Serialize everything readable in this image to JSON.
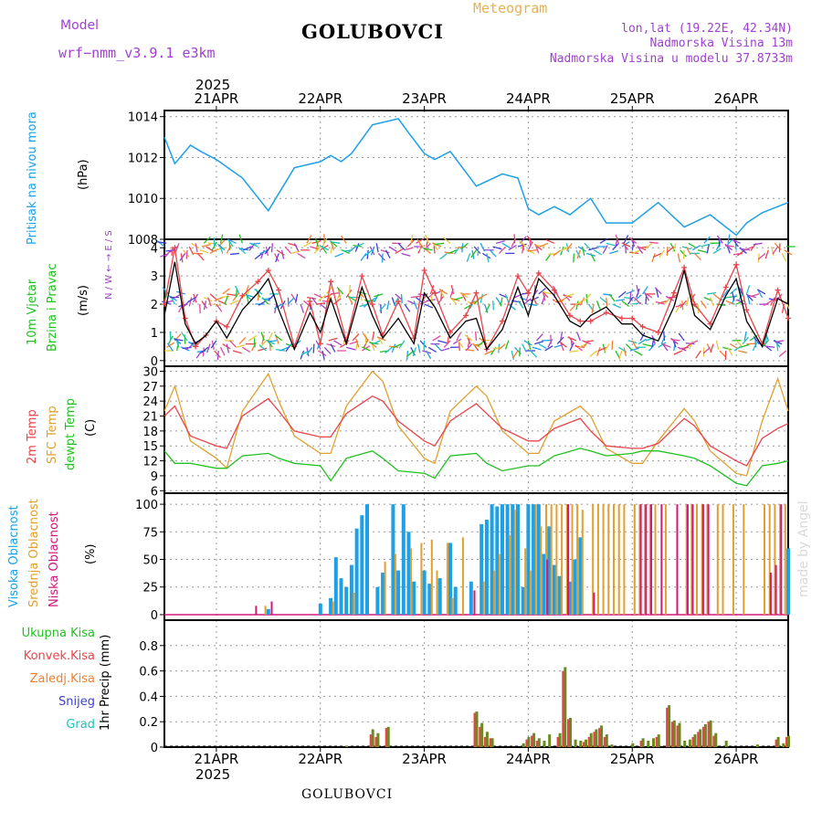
{
  "header": {
    "title": "GOLUBOVCI",
    "meteogram": "Meteogram",
    "model_label": "Model",
    "model_name": "wrf−nmm_v3.9.1  e3km",
    "lonlat": "lon,lat (19.22E, 42.34N)",
    "elevation": "Nadmorska Visina 13m",
    "model_elevation": "Nadmorska Visina u modelu 37.8733m",
    "footer_title": "GOLUBOVCI",
    "watermark": "made by Angel"
  },
  "colors": {
    "pressure": "#1ea0e6",
    "wind_speed": "#000000",
    "gust": "#e8454b",
    "t2m": "#e8454b",
    "sfc": "#e0a030",
    "dewpt": "#22c022",
    "high_cloud": "#1ea0e6",
    "mid_cloud": "#e0a030",
    "low_cloud": "#d0187a",
    "total_precip": "#22c022",
    "convective": "#e8454b",
    "frozen": "#f08030",
    "snow": "#4040d0",
    "graupel": "#20c0c0"
  },
  "chart_data": [
    {
      "id": "time_axis",
      "type": "line",
      "year": "2025",
      "date_labels": [
        "21APR",
        "22APR",
        "23APR",
        "24APR",
        "25APR",
        "26APR"
      ]
    },
    {
      "id": "pressure",
      "type": "line",
      "ylabel_1": "Pritisak na nivou mora",
      "ylabel_2": "(hPa)",
      "ylim": [
        1008,
        1014.3
      ],
      "yticks": [
        1008,
        1010,
        1012,
        1014
      ],
      "x": [
        0.5,
        0.6,
        0.75,
        0.85,
        1.0,
        1.25,
        1.5,
        1.75,
        2.0,
        2.1,
        2.2,
        2.3,
        2.5,
        2.75,
        2.85,
        3.0,
        3.1,
        3.25,
        3.5,
        3.75,
        3.9,
        4.0,
        4.1,
        4.25,
        4.4,
        4.6,
        4.75,
        5.0,
        5.25,
        5.5,
        5.75,
        6.0,
        6.1,
        6.25,
        6.5
      ],
      "values": [
        1013,
        1011.7,
        1012.6,
        1012.3,
        1011.9,
        1011,
        1009.4,
        1011.5,
        1011.8,
        1012.1,
        1011.8,
        1012.2,
        1013.6,
        1013.9,
        1013.2,
        1012.2,
        1011.9,
        1012.3,
        1010.6,
        1011.2,
        1011,
        1009.5,
        1009.2,
        1009.6,
        1009.2,
        1010,
        1008.8,
        1008.8,
        1009.8,
        1008.6,
        1009.2,
        1008.2,
        1008.8,
        1009.3,
        1009.8
      ]
    },
    {
      "id": "wind",
      "type": "line",
      "ylabel_1": "10m Vjetar",
      "ylabel_2": "Brzina i Pravac",
      "ylabel_3": "(m/s)",
      "compass": "N / W ← → E / S",
      "ylim": [
        -0.2,
        4.3
      ],
      "yticks": [
        0,
        1,
        2,
        3,
        4
      ],
      "x": [
        0.5,
        0.6,
        0.7,
        0.8,
        0.9,
        1.0,
        1.1,
        1.25,
        1.4,
        1.5,
        1.6,
        1.75,
        1.9,
        2.0,
        2.1,
        2.25,
        2.4,
        2.5,
        2.6,
        2.75,
        2.9,
        3.0,
        3.1,
        3.25,
        3.4,
        3.5,
        3.6,
        3.75,
        3.9,
        4.0,
        4.1,
        4.25,
        4.4,
        4.5,
        4.6,
        4.75,
        4.9,
        5.0,
        5.1,
        5.25,
        5.4,
        5.5,
        5.6,
        5.75,
        5.9,
        6.0,
        6.1,
        6.25,
        6.4,
        6.5
      ],
      "speed": [
        1.6,
        3.5,
        1.3,
        0.6,
        0.9,
        1.4,
        0.8,
        1.8,
        2.4,
        2.9,
        1.8,
        0.4,
        1.7,
        1.0,
        2.2,
        0.6,
        2.6,
        1.6,
        0.8,
        1.5,
        0.6,
        2.4,
        1.9,
        0.8,
        1.4,
        1.5,
        0.4,
        1.1,
        2.6,
        1.6,
        2.9,
        2.3,
        1.4,
        1.2,
        1.6,
        1.9,
        1.3,
        1.3,
        0.9,
        0.7,
        1.9,
        3.2,
        1.6,
        1.1,
        2.3,
        2.9,
        1.4,
        0.5,
        2.2,
        2.0
      ],
      "gust": [
        2.0,
        4.0,
        1.5,
        0.5,
        0.9,
        1.4,
        1.2,
        2.3,
        2.8,
        3.2,
        2.5,
        0.5,
        2.1,
        0.6,
        2.8,
        0.7,
        3.0,
        2.0,
        0.9,
        2.1,
        0.8,
        3.2,
        2.4,
        1.0,
        1.6,
        2.4,
        0.4,
        1.4,
        3.0,
        2.4,
        3.1,
        2.5,
        1.6,
        1.4,
        1.4,
        1.7,
        1.5,
        1.5,
        1.2,
        1.0,
        2.4,
        3.3,
        2.0,
        1.3,
        2.6,
        3.4,
        1.8,
        0.6,
        2.5,
        1.5
      ]
    },
    {
      "id": "temperature",
      "type": "line",
      "ylabel_1": "2m Temp",
      "ylabel_2": "SFC Temp",
      "ylabel_3": "dewpt Temp",
      "ylabel_4": "(C)",
      "ylim": [
        5.5,
        31
      ],
      "yticks": [
        6,
        9,
        12,
        15,
        18,
        21,
        24,
        27,
        30
      ],
      "x": [
        0.5,
        0.6,
        0.75,
        1.0,
        1.1,
        1.25,
        1.5,
        1.6,
        1.75,
        2.0,
        2.1,
        2.25,
        2.5,
        2.6,
        2.75,
        3.0,
        3.1,
        3.25,
        3.5,
        3.6,
        3.75,
        4.0,
        4.1,
        4.25,
        4.5,
        4.6,
        4.75,
        5.0,
        5.1,
        5.25,
        5.5,
        5.6,
        5.75,
        6.0,
        6.1,
        6.25,
        6.4,
        6.5
      ],
      "t2m": [
        21,
        23,
        17,
        15,
        14.5,
        21,
        24.5,
        22,
        18,
        16.8,
        16.8,
        21.5,
        25,
        24,
        20,
        16,
        15,
        20,
        23.5,
        21.5,
        18.5,
        16,
        16,
        18.5,
        20.5,
        18,
        15,
        14.5,
        14.5,
        15.5,
        20.5,
        19,
        15,
        12,
        11,
        16.5,
        18.5,
        19.5
      ],
      "sfc": [
        22,
        27,
        16,
        12.5,
        10.5,
        22,
        29.5,
        24,
        17,
        13.5,
        13.5,
        23,
        30,
        28,
        19,
        12.5,
        11.5,
        22,
        27,
        25,
        18,
        13.5,
        13.5,
        20,
        23,
        21,
        14.5,
        11.5,
        11.5,
        16,
        22.5,
        20,
        14,
        9.5,
        9,
        20,
        28.5,
        22
      ],
      "dew": [
        14,
        11.5,
        11.5,
        10.5,
        10.5,
        13,
        13.5,
        12.5,
        11.5,
        11,
        8,
        12.5,
        14,
        12.5,
        10,
        9.5,
        8.5,
        13,
        13.5,
        11.5,
        10,
        11,
        11,
        13,
        14.5,
        14,
        13,
        13.5,
        14,
        14,
        13,
        12.5,
        11,
        7.5,
        7,
        11,
        11.5,
        12
      ]
    },
    {
      "id": "clouds",
      "type": "bar",
      "ylabel_1": "Visoka Oblacnost",
      "ylabel_2": "Srednja Oblacnost",
      "ylabel_3": "Niska Oblacnost",
      "ylabel_4": "(%)",
      "ylim": [
        -5,
        110
      ],
      "yticks": [
        0,
        25,
        50,
        75,
        100
      ],
      "high": [
        [
          1.5,
          5
        ],
        [
          2.0,
          10
        ],
        [
          2.1,
          15
        ],
        [
          2.15,
          52
        ],
        [
          2.2,
          33
        ],
        [
          2.25,
          25
        ],
        [
          2.3,
          45
        ],
        [
          2.35,
          78
        ],
        [
          2.4,
          90
        ],
        [
          2.45,
          100
        ],
        [
          2.55,
          25
        ],
        [
          2.6,
          38
        ],
        [
          2.7,
          100
        ],
        [
          2.75,
          40
        ],
        [
          2.8,
          100
        ],
        [
          2.85,
          75
        ],
        [
          2.9,
          30
        ],
        [
          3.0,
          40
        ],
        [
          3.05,
          28
        ],
        [
          3.15,
          33
        ],
        [
          3.25,
          65
        ],
        [
          3.3,
          25
        ],
        [
          3.45,
          30
        ],
        [
          3.55,
          82
        ],
        [
          3.6,
          86
        ],
        [
          3.65,
          100
        ],
        [
          3.7,
          98
        ],
        [
          3.75,
          100
        ],
        [
          3.8,
          100
        ],
        [
          3.85,
          100
        ],
        [
          3.9,
          100
        ],
        [
          3.95,
          25
        ],
        [
          4.0,
          100
        ],
        [
          4.05,
          100
        ],
        [
          4.1,
          100
        ],
        [
          4.15,
          55
        ],
        [
          4.2,
          80
        ],
        [
          4.25,
          45
        ],
        [
          4.3,
          35
        ],
        [
          4.4,
          30
        ],
        [
          4.45,
          50
        ],
        [
          4.5,
          70
        ],
        [
          6.5,
          60
        ]
      ],
      "mid": [
        [
          1.45,
          8
        ],
        [
          2.1,
          12
        ],
        [
          2.3,
          20
        ],
        [
          2.6,
          48
        ],
        [
          2.7,
          55
        ],
        [
          2.85,
          60
        ],
        [
          2.95,
          65
        ],
        [
          3.05,
          68
        ],
        [
          3.1,
          40
        ],
        [
          3.2,
          65
        ],
        [
          3.25,
          15
        ],
        [
          3.35,
          70
        ],
        [
          3.55,
          30
        ],
        [
          3.65,
          40
        ],
        [
          3.7,
          55
        ],
        [
          3.8,
          72
        ],
        [
          3.85,
          95
        ],
        [
          3.95,
          60
        ],
        [
          4.0,
          40
        ],
        [
          4.05,
          100
        ],
        [
          4.1,
          80
        ],
        [
          4.15,
          100
        ],
        [
          4.2,
          100
        ],
        [
          4.25,
          100
        ],
        [
          4.3,
          100
        ],
        [
          4.35,
          100
        ],
        [
          4.4,
          100
        ],
        [
          4.45,
          100
        ],
        [
          4.5,
          95
        ],
        [
          4.6,
          100
        ],
        [
          4.65,
          100
        ],
        [
          4.7,
          100
        ],
        [
          4.75,
          100
        ],
        [
          4.8,
          100
        ],
        [
          4.85,
          100
        ],
        [
          4.9,
          100
        ],
        [
          5.0,
          100
        ],
        [
          5.05,
          100
        ],
        [
          5.1,
          100
        ],
        [
          5.15,
          100
        ],
        [
          5.2,
          100
        ],
        [
          5.3,
          100
        ],
        [
          5.5,
          100
        ],
        [
          5.55,
          100
        ],
        [
          5.6,
          100
        ],
        [
          5.65,
          100
        ],
        [
          5.7,
          100
        ],
        [
          5.8,
          100
        ],
        [
          5.85,
          100
        ],
        [
          5.95,
          100
        ],
        [
          6.05,
          100
        ],
        [
          6.25,
          100
        ],
        [
          6.3,
          100
        ],
        [
          6.35,
          100
        ],
        [
          6.4,
          100
        ],
        [
          6.45,
          100
        ]
      ],
      "low": [
        [
          1.4,
          8
        ],
        [
          1.55,
          12
        ],
        [
          3.5,
          22
        ],
        [
          4.2,
          50
        ],
        [
          4.4,
          100
        ],
        [
          4.65,
          20
        ],
        [
          5.1,
          100
        ],
        [
          5.15,
          100
        ],
        [
          5.2,
          100
        ],
        [
          5.3,
          100
        ],
        [
          5.45,
          100
        ],
        [
          5.55,
          100
        ],
        [
          5.6,
          100
        ],
        [
          5.7,
          100
        ],
        [
          5.75,
          100
        ],
        [
          6.35,
          38
        ],
        [
          6.4,
          45
        ],
        [
          6.45,
          100
        ]
      ]
    },
    {
      "id": "precipitation",
      "type": "bar",
      "legend": [
        "Ukupna Kisa",
        "Konvek.Kisa",
        "Zaledj.Kisa",
        "Snijeg",
        "Grad"
      ],
      "ylabel": "1hr Precip (mm)",
      "ylim": [
        0,
        1.0
      ],
      "yticks": [
        0,
        0.2,
        0.4,
        0.6,
        0.8
      ],
      "total": [
        [
          2.25,
          0.01
        ],
        [
          2.5,
          0.14
        ],
        [
          2.55,
          0.11
        ],
        [
          2.65,
          0.16
        ],
        [
          3.5,
          0.28
        ],
        [
          3.55,
          0.19
        ],
        [
          3.6,
          0.12
        ],
        [
          3.65,
          0.07
        ],
        [
          3.95,
          0.03
        ],
        [
          4.0,
          0.08
        ],
        [
          4.05,
          0.11
        ],
        [
          4.1,
          0.07
        ],
        [
          4.15,
          0.05
        ],
        [
          4.2,
          0.1
        ],
        [
          4.3,
          0.11
        ],
        [
          4.35,
          0.63
        ],
        [
          4.4,
          0.23
        ],
        [
          4.45,
          0.06
        ],
        [
          4.5,
          0.05
        ],
        [
          4.55,
          0.06
        ],
        [
          4.6,
          0.11
        ],
        [
          4.65,
          0.14
        ],
        [
          4.7,
          0.17
        ],
        [
          4.75,
          0.1
        ],
        [
          4.8,
          0.02
        ],
        [
          5.0,
          0.03
        ],
        [
          5.1,
          0.07
        ],
        [
          5.15,
          0.05
        ],
        [
          5.2,
          0.07
        ],
        [
          5.25,
          0.1
        ],
        [
          5.35,
          0.33
        ],
        [
          5.4,
          0.21
        ],
        [
          5.45,
          0.19
        ],
        [
          5.5,
          0.05
        ],
        [
          5.55,
          0.06
        ],
        [
          5.6,
          0.1
        ],
        [
          5.65,
          0.14
        ],
        [
          5.7,
          0.18
        ],
        [
          5.75,
          0.21
        ],
        [
          5.8,
          0.11
        ],
        [
          5.9,
          0.05
        ],
        [
          6.2,
          0.02
        ],
        [
          6.4,
          0.08
        ],
        [
          6.45,
          0.03
        ],
        [
          6.5,
          0.09
        ]
      ],
      "conv": [
        [
          2.5,
          0.1
        ],
        [
          2.55,
          0.08
        ],
        [
          2.65,
          0.15
        ],
        [
          3.5,
          0.27
        ],
        [
          3.55,
          0.16
        ],
        [
          3.6,
          0.08
        ],
        [
          3.65,
          0.07
        ],
        [
          4.0,
          0.06
        ],
        [
          4.05,
          0.09
        ],
        [
          4.1,
          0.05
        ],
        [
          4.3,
          0.08
        ],
        [
          4.35,
          0.6
        ],
        [
          4.4,
          0.22
        ],
        [
          4.55,
          0.04
        ],
        [
          4.6,
          0.08
        ],
        [
          4.65,
          0.12
        ],
        [
          4.7,
          0.15
        ],
        [
          4.75,
          0.08
        ],
        [
          5.1,
          0.05
        ],
        [
          5.25,
          0.08
        ],
        [
          5.35,
          0.31
        ],
        [
          5.4,
          0.2
        ],
        [
          5.45,
          0.17
        ],
        [
          5.6,
          0.08
        ],
        [
          5.65,
          0.12
        ],
        [
          5.7,
          0.16
        ],
        [
          5.75,
          0.2
        ],
        [
          5.8,
          0.09
        ],
        [
          6.4,
          0.06
        ],
        [
          6.5,
          0.08
        ]
      ]
    }
  ]
}
